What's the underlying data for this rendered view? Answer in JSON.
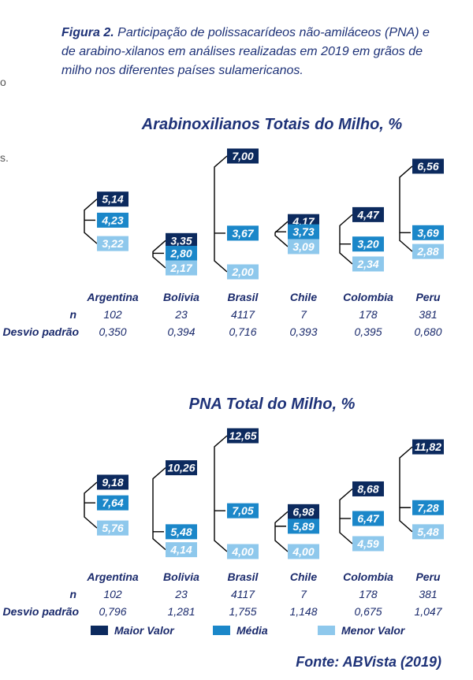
{
  "caption": {
    "figure_label": "Figura 2.",
    "text": "Participação de polissacarídeos não-amiláceos (PNA) e de arabino-xilanos em análises realizadas em 2019 em grãos de milho nos diferentes países sulamericanos."
  },
  "edge_marks": [
    "o",
    "s."
  ],
  "row_labels": {
    "n": "n",
    "sd": "Desvio padrão"
  },
  "colors": {
    "max": "#0c2a5e",
    "mean": "#1b87c9",
    "min": "#8ec8ec",
    "line": "#000000"
  },
  "chart_data": [
    {
      "type": "range",
      "title": "Arabinoxilianos Totais do Milho, %",
      "categories": [
        "Argentina",
        "Bolivia",
        "Brasil",
        "Chile",
        "Colombia",
        "Peru"
      ],
      "max": [
        5.14,
        3.35,
        7.0,
        4.17,
        4.47,
        6.56
      ],
      "mean": [
        4.23,
        2.8,
        3.67,
        3.73,
        3.2,
        3.69
      ],
      "min": [
        3.22,
        2.17,
        2.0,
        3.09,
        2.34,
        2.88
      ],
      "max_labels": [
        "5,14",
        "3,35",
        "7,00",
        "4,17",
        "4,47",
        "6,56"
      ],
      "mean_labels": [
        "4,23",
        "2,80",
        "3,67",
        "3,73",
        "3,20",
        "3,69"
      ],
      "min_labels": [
        "3,22",
        "2,17",
        "2,00",
        "3,09",
        "2,34",
        "2,88"
      ],
      "n": [
        "102",
        "23",
        "4117",
        "7",
        "178",
        "381"
      ],
      "sd": [
        "0,350",
        "0,394",
        "0,716",
        "0,393",
        "0,395",
        "0,680"
      ]
    },
    {
      "type": "range",
      "title": "PNA Total do Milho, %",
      "categories": [
        "Argentina",
        "Bolivia",
        "Brasil",
        "Chile",
        "Colombia",
        "Peru"
      ],
      "max": [
        9.18,
        10.26,
        12.65,
        6.98,
        8.68,
        11.82
      ],
      "mean": [
        7.64,
        5.48,
        7.05,
        5.89,
        6.47,
        7.28
      ],
      "min": [
        5.76,
        4.14,
        4.0,
        4.0,
        4.59,
        5.48
      ],
      "max_labels": [
        "9,18",
        "10,26",
        "12,65",
        "6,98",
        "8,68",
        "11,82"
      ],
      "mean_labels": [
        "7,64",
        "5,48",
        "7,05",
        "5,89",
        "6,47",
        "7,28"
      ],
      "min_labels": [
        "5,76",
        "4,14",
        "4,00",
        "4,00",
        "4,59",
        "5,48"
      ],
      "n": [
        "102",
        "23",
        "4117",
        "7",
        "178",
        "381"
      ],
      "sd": [
        "0,796",
        "1,281",
        "1,755",
        "1,148",
        "0,675",
        "1,047"
      ]
    }
  ],
  "legend": [
    {
      "key": "max",
      "label": "Maior Valor"
    },
    {
      "key": "mean",
      "label": "Média"
    },
    {
      "key": "min",
      "label": "Menor Valor"
    }
  ],
  "source": "Fonte: ABVista (2019)"
}
